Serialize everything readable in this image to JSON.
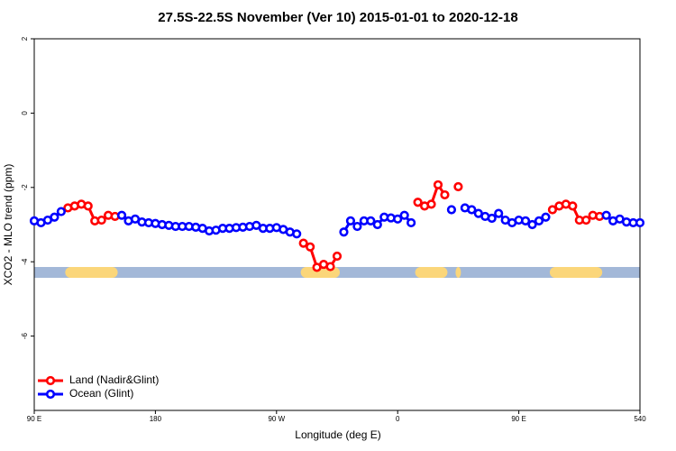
{
  "chart_data": {
    "type": "line",
    "title": "27.5S-22.5S November (Ver 10)   2015-01-01 to 2020-12-18",
    "x_label": "Longitude (deg E)",
    "y_label": "XCO2 - MLO trend (ppm)",
    "x": [
      90,
      95,
      100,
      105,
      110,
      115,
      120,
      125,
      130,
      135,
      140,
      145,
      150,
      155,
      160,
      165,
      170,
      175,
      180,
      185,
      190,
      195,
      200,
      205,
      210,
      215,
      220,
      225,
      230,
      235,
      240,
      245,
      250,
      255,
      260,
      265,
      270,
      275,
      280,
      285,
      290,
      295,
      300,
      305,
      310,
      315,
      320,
      325,
      330,
      335,
      340,
      345,
      350,
      355,
      360,
      365,
      370,
      375,
      380,
      385,
      390,
      395,
      400,
      405,
      410,
      415,
      420,
      425,
      430,
      435,
      440,
      445,
      450,
      455,
      460,
      465,
      470,
      475,
      480,
      485,
      490,
      495,
      500,
      505,
      510,
      515,
      520,
      525,
      530,
      535,
      540
    ],
    "series": [
      {
        "name": "Land (Nadir&Glint)",
        "color": "#ff0000",
        "values": [
          null,
          null,
          null,
          null,
          null,
          -2.55,
          -2.5,
          -2.45,
          -2.5,
          -2.9,
          -2.88,
          -2.75,
          -2.78,
          null,
          null,
          null,
          null,
          null,
          null,
          null,
          null,
          null,
          null,
          null,
          null,
          null,
          null,
          null,
          null,
          null,
          null,
          null,
          null,
          null,
          null,
          null,
          null,
          null,
          null,
          null,
          -3.5,
          -3.6,
          -4.15,
          -4.07,
          -4.13,
          -3.85,
          null,
          null,
          null,
          null,
          null,
          null,
          null,
          null,
          null,
          null,
          null,
          -2.4,
          -2.5,
          -2.45,
          -1.93,
          -2.2,
          null,
          -1.98,
          null,
          null,
          null,
          null,
          null,
          null,
          null,
          null,
          null,
          null,
          null,
          null,
          null,
          -2.6,
          -2.5,
          -2.45,
          -2.5,
          -2.88,
          -2.88,
          -2.75,
          -2.78,
          null,
          null,
          null,
          null,
          null,
          null
        ]
      },
      {
        "name": "Ocean (Glint)",
        "color": "#0000ff",
        "values": [
          -2.9,
          -2.95,
          -2.88,
          -2.8,
          -2.65,
          null,
          null,
          null,
          null,
          null,
          null,
          null,
          null,
          -2.75,
          -2.9,
          -2.85,
          -2.93,
          -2.95,
          -2.97,
          -3.0,
          -3.02,
          -3.05,
          -3.05,
          -3.05,
          -3.07,
          -3.1,
          -3.17,
          -3.15,
          -3.1,
          -3.1,
          -3.08,
          -3.07,
          -3.05,
          -3.02,
          -3.1,
          -3.1,
          -3.08,
          -3.13,
          -3.2,
          -3.25,
          null,
          null,
          null,
          null,
          null,
          null,
          -3.2,
          -2.9,
          -3.05,
          -2.9,
          -2.9,
          -3.0,
          -2.8,
          -2.82,
          -2.85,
          -2.75,
          -2.95,
          null,
          null,
          null,
          null,
          null,
          -2.6,
          null,
          -2.55,
          -2.6,
          -2.7,
          -2.78,
          -2.83,
          -2.7,
          -2.88,
          -2.95,
          -2.88,
          -2.9,
          -3.0,
          -2.9,
          -2.8,
          null,
          null,
          null,
          null,
          null,
          null,
          null,
          null,
          -2.75,
          -2.9,
          -2.85,
          -2.93,
          -2.95,
          -2.95
        ]
      }
    ],
    "xlim": [
      90,
      540
    ],
    "xticks": [
      {
        "value": 90,
        "label": "90 E"
      },
      180,
      {
        "value": 270,
        "label": "90 W"
      },
      {
        "value": 360,
        "label": "0"
      },
      {
        "value": 450,
        "label": "90 E"
      },
      540
    ],
    "ylim": [
      -8,
      2
    ],
    "yticks": [
      2,
      0,
      -2,
      -4,
      -6
    ],
    "legend": "bottom-left"
  }
}
